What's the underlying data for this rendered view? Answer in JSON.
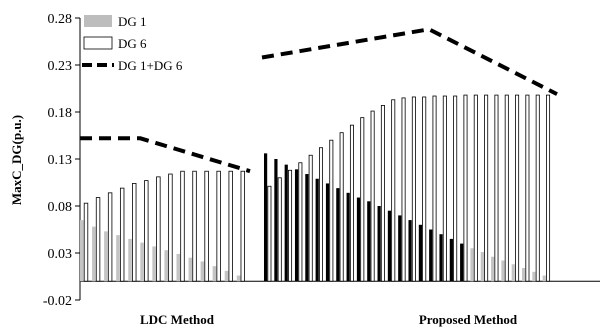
{
  "chart_data": {
    "type": "bar",
    "ylabel": "MaxC_DG(p.u.)",
    "ylim": [
      -0.02,
      0.28
    ],
    "yticks": [
      "-0.02",
      "0.03",
      "0.08",
      "0.13",
      "0.18",
      "0.23",
      "0.28"
    ],
    "ytick_values": [
      -0.02,
      0.03,
      0.08,
      0.13,
      0.18,
      0.23,
      0.28
    ],
    "grid": false,
    "legend_position": "top-left",
    "groups": [
      {
        "label": "LDC Method",
        "dg1": [
          0.065,
          0.058,
          0.053,
          0.049,
          0.045,
          0.041,
          0.037,
          0.033,
          0.029,
          0.025,
          0.021,
          0.016,
          0.011,
          0.006
        ],
        "dg6": [
          0.083,
          0.089,
          0.094,
          0.099,
          0.104,
          0.107,
          0.111,
          0.114,
          0.117,
          0.117,
          0.117,
          0.117,
          0.117,
          0.117
        ],
        "dg1_dg6": {
          "start": 0.152,
          "flat_end_index": 5,
          "end": 0.117
        }
      },
      {
        "label": "Proposed Method",
        "dg1": [
          0.136,
          0.13,
          0.124,
          0.119,
          0.114,
          0.109,
          0.104,
          0.099,
          0.094,
          0.089,
          0.085,
          0.08,
          0.075,
          0.07,
          0.065,
          0.06,
          0.055,
          0.05,
          0.045,
          0.04,
          0.035,
          0.031,
          0.026,
          0.022,
          0.018,
          0.014,
          0.01,
          0.006
        ],
        "dg6": [
          0.101,
          0.11,
          0.118,
          0.126,
          0.134,
          0.142,
          0.15,
          0.158,
          0.166,
          0.174,
          0.181,
          0.187,
          0.193,
          0.195,
          0.196,
          0.196,
          0.197,
          0.197,
          0.197,
          0.198,
          0.198,
          0.198,
          0.198,
          0.198,
          0.198,
          0.198,
          0.198,
          0.198
        ],
        "dg1_dg6": {
          "start": 0.238,
          "peak": 0.268,
          "end": 0.199
        }
      }
    ],
    "legend": [
      {
        "key": "dg1",
        "label": "DG 1",
        "color": "#bdbdbd"
      },
      {
        "key": "dg6",
        "label": "DG 6",
        "color": "#ffffff"
      },
      {
        "key": "dg1_dg6",
        "label": "DG 1+DG 6",
        "color": "#000000"
      }
    ],
    "colors": {
      "dg1_ldc": "#c4c4c4",
      "dg1_proposed_first_half": "#000000",
      "dg1_proposed_second_half": "#c4c4c4",
      "dg6_fill": "#ffffff",
      "dg6_stroke": "#000000",
      "line": "#000000"
    }
  }
}
